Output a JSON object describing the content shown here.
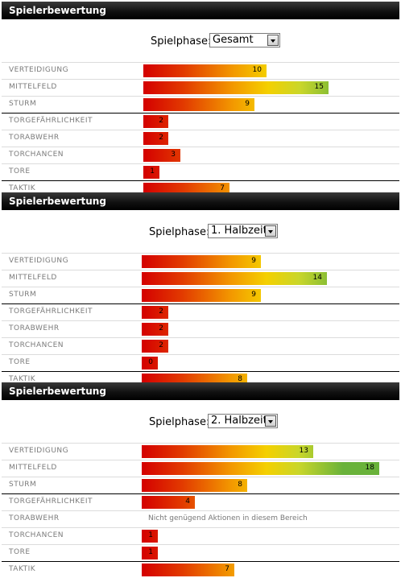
{
  "panels": [
    {
      "title": "Spielerbewertung",
      "phase_label": "Spielphase:",
      "phase_value": "Gesamt",
      "rows": [
        {
          "name": "VERTEIDIGUNG",
          "value": "10"
        },
        {
          "name": "MITTELFELD",
          "value": "15"
        },
        {
          "name": "STURM",
          "value": "9"
        },
        {
          "name": "TORGEFÄHRLICHKEIT",
          "value": "2"
        },
        {
          "name": "TORABWEHR",
          "value": "2"
        },
        {
          "name": "TORCHANCEN",
          "value": "3"
        },
        {
          "name": "TORE",
          "value": "1"
        },
        {
          "name": "TAKTIK",
          "value": "7"
        }
      ]
    },
    {
      "title": "Spielerbewertung",
      "phase_label": "Spielphase:",
      "phase_value": "1. Halbzeit",
      "rows": [
        {
          "name": "VERTEIDIGUNG",
          "value": "9"
        },
        {
          "name": "MITTELFELD",
          "value": "14"
        },
        {
          "name": "STURM",
          "value": "9"
        },
        {
          "name": "TORGEFÄHRLICHKEIT",
          "value": "2"
        },
        {
          "name": "TORABWEHR",
          "value": "2"
        },
        {
          "name": "TORCHANCEN",
          "value": "2"
        },
        {
          "name": "TORE",
          "value": "0"
        },
        {
          "name": "TAKTIK",
          "value": "8"
        }
      ]
    },
    {
      "title": "Spielerbewertung",
      "phase_label": "Spielphase:",
      "phase_value": "2. Halbzeit",
      "rows": [
        {
          "name": "VERTEIDIGUNG",
          "value": "13"
        },
        {
          "name": "MITTELFELD",
          "value": "18"
        },
        {
          "name": "STURM",
          "value": "8"
        },
        {
          "name": "TORGEFÄHRLICHKEIT",
          "value": "4"
        },
        {
          "name": "TORABWEHR",
          "value": null,
          "message": "Nicht genügend Aktionen in diesem Bereich"
        },
        {
          "name": "TORCHANCEN",
          "value": "1"
        },
        {
          "name": "TORE",
          "value": "1"
        },
        {
          "name": "TAKTIK",
          "value": "7"
        }
      ]
    }
  ]
}
